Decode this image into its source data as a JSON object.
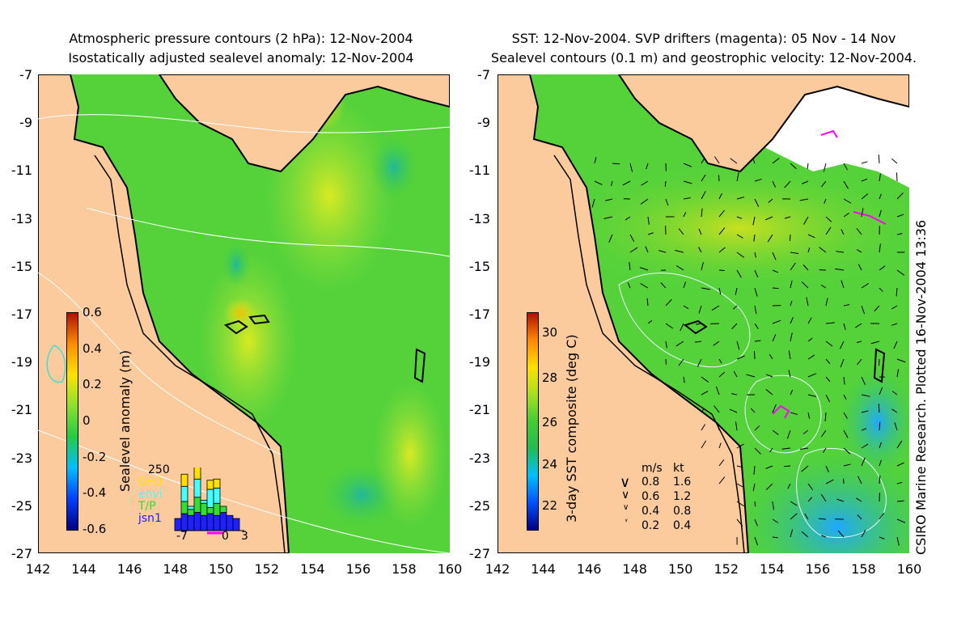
{
  "left_panel": {
    "title_line1": "Atmospheric pressure contours (2 hPa): 12-Nov-2004",
    "title_line2": "Isostatically adjusted sealevel anomaly: 12-Nov-2004",
    "colorbar_label": "Sealevel anomaly (m)",
    "colorbar_ticks": [
      "0.6",
      "0.4",
      "0.2",
      "0",
      "-0.2",
      "-0.4",
      "-0.6"
    ],
    "colorbar_colors": [
      "#00007f",
      "#0040ff",
      "#00bfff",
      "#22cc44",
      "#8ae22e",
      "#ffe200",
      "#ff8c00",
      "#b01000"
    ],
    "histogram": {
      "ymax_label": "250",
      "legend": [
        {
          "label": "GFO",
          "color": "#ffe000"
        },
        {
          "label": "envi",
          "color": "#44ffff"
        },
        {
          "label": "T/P",
          "color": "#33dd33"
        },
        {
          "label": "jsn1",
          "color": "#2020ff"
        }
      ],
      "x_labels": [
        "-7",
        "0",
        "3"
      ],
      "bars": [
        {
          "jsn1": 20,
          "tp": 0,
          "envi": 0,
          "gfo": 0
        },
        {
          "jsn1": 28,
          "tp": 20,
          "envi": 25,
          "gfo": 20
        },
        {
          "jsn1": 25,
          "tp": 10,
          "envi": 5,
          "gfo": 0
        },
        {
          "jsn1": 30,
          "tp": 25,
          "envi": 30,
          "gfo": 20
        },
        {
          "jsn1": 25,
          "tp": 20,
          "envi": 5,
          "gfo": 0
        },
        {
          "jsn1": 28,
          "tp": 10,
          "envi": 30,
          "gfo": 15
        },
        {
          "jsn1": 25,
          "tp": 20,
          "envi": 25,
          "gfo": 15
        },
        {
          "jsn1": 30,
          "tp": 10,
          "envi": 0,
          "gfo": 0
        },
        {
          "jsn1": 25,
          "tp": 0,
          "envi": 0,
          "gfo": 0
        },
        {
          "jsn1": 20,
          "tp": 0,
          "envi": 0,
          "gfo": 0
        }
      ]
    }
  },
  "right_panel": {
    "title_line1": "SST: 12-Nov-2004. SVP drifters (magenta): 05 Nov - 14 Nov",
    "title_line2": "Sealevel contours (0.1 m) and geostrophic velocity: 12-Nov-2004.",
    "colorbar_label": "3-day SST composite (deg C)",
    "colorbar_ticks": [
      "30",
      "28",
      "26",
      "24",
      "22"
    ],
    "colorbar_colors": [
      "#00007f",
      "#0050ff",
      "#00c0ff",
      "#22bb55",
      "#44cc33",
      "#a8e020",
      "#ffe000",
      "#ff8800",
      "#b01000"
    ],
    "velocity_legend": {
      "header_ms": "m/s",
      "header_kt": "kt",
      "rows": [
        {
          "ms": "0.8",
          "kt": "1.6"
        },
        {
          "ms": "0.6",
          "kt": "1.2"
        },
        {
          "ms": "0.4",
          "kt": "0.8"
        },
        {
          "ms": "0.2",
          "kt": "0.4"
        }
      ]
    },
    "credit": "CSIRO Marine Research. Plotted 16-Nov-2004 13:36"
  },
  "axes": {
    "y_ticks": [
      "-7",
      "-9",
      "-11",
      "-13",
      "-15",
      "-17",
      "-19",
      "-21",
      "-23",
      "-25",
      "-27"
    ],
    "x_ticks": [
      "142",
      "144",
      "146",
      "148",
      "150",
      "152",
      "154",
      "156",
      "158",
      "160"
    ]
  },
  "colors": {
    "land": "#fbcb9d",
    "ocean_green": "#3fcf3f",
    "ocean_light": "#8fe040",
    "coast": "#000000",
    "contour": "#ffffff",
    "drifter": "#ff00ff"
  }
}
